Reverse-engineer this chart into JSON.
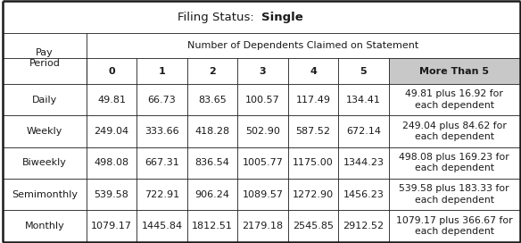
{
  "title_normal": "Filing Status:  ",
  "title_bold": "Single",
  "col_header_main": "Number of Dependents Claimed on Statement",
  "col_header_pay": "Pay\nPeriod",
  "col_headers_num": [
    "0",
    "1",
    "2",
    "3",
    "4",
    "5"
  ],
  "col_header_more": "More Than 5",
  "rows": [
    {
      "period": "Daily",
      "values": [
        "49.81",
        "66.73",
        "83.65",
        "100.57",
        "117.49",
        "134.41"
      ],
      "more": "49.81 plus 16.92 for\neach dependent"
    },
    {
      "period": "Weekly",
      "values": [
        "249.04",
        "333.66",
        "418.28",
        "502.90",
        "587.52",
        "672.14"
      ],
      "more": "249.04 plus 84.62 for\neach dependent"
    },
    {
      "period": "Biweekly",
      "values": [
        "498.08",
        "667.31",
        "836.54",
        "1005.77",
        "1175.00",
        "1344.23"
      ],
      "more": "498.08 plus 169.23 for\neach dependent"
    },
    {
      "period": "Semimonthly",
      "values": [
        "539.58",
        "722.91",
        "906.24",
        "1089.57",
        "1272.90",
        "1456.23"
      ],
      "more": "539.58 plus 183.33 for\neach dependent"
    },
    {
      "period": "Monthly",
      "values": [
        "1079.17",
        "1445.84",
        "1812.51",
        "2179.18",
        "2545.85",
        "2912.52"
      ],
      "more": "1079.17 plus 366.67 for\neach dependent"
    }
  ],
  "bg_color": "#ffffff",
  "header_more_bg": "#c8c8c8",
  "border_color": "#1a1a1a",
  "text_color": "#1a1a1a",
  "font_size_title": 9.5,
  "font_size_header": 8.0,
  "font_size_cell": 8.0,
  "font_size_more": 7.8
}
